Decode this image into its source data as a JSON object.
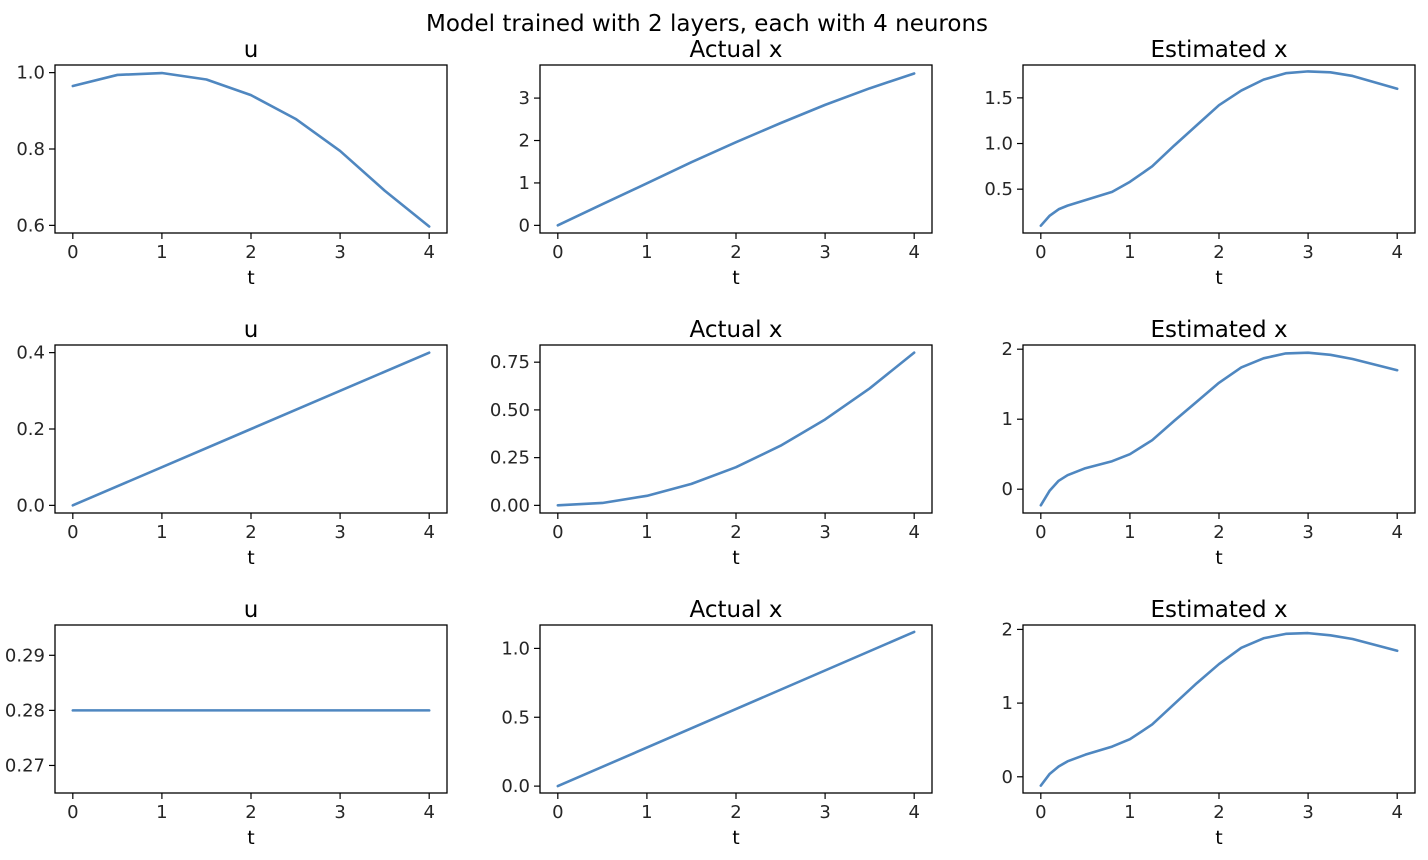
{
  "suptitle": "Model trained with 2 layers, each with 4 neurons",
  "line_color": "#4f87c0",
  "chart_data": [
    {
      "type": "line",
      "title": "u",
      "xlabel": "t",
      "ylabel": "",
      "xlim": [
        -0.2,
        4.2
      ],
      "ylim": [
        0.58,
        1.02
      ],
      "xticks": [
        0,
        1,
        2,
        3,
        4
      ],
      "xtick_labels": [
        "0",
        "1",
        "2",
        "3",
        "4"
      ],
      "yticks": [
        0.6,
        0.8,
        1.0
      ],
      "ytick_labels": [
        "0.6",
        "0.8",
        "1.0"
      ],
      "x": [
        0,
        0.5,
        1,
        1.5,
        2,
        2.5,
        3,
        3.5,
        4
      ],
      "y": [
        0.965,
        0.994,
        0.999,
        0.982,
        0.941,
        0.879,
        0.795,
        0.691,
        0.597
      ]
    },
    {
      "type": "line",
      "title": "Actual x",
      "xlabel": "t",
      "ylabel": "",
      "xlim": [
        -0.2,
        4.2
      ],
      "ylim": [
        -0.18,
        3.78
      ],
      "xticks": [
        0,
        1,
        2,
        3,
        4
      ],
      "xtick_labels": [
        "0",
        "1",
        "2",
        "3",
        "4"
      ],
      "yticks": [
        0,
        1,
        2,
        3
      ],
      "ytick_labels": [
        "0",
        "1",
        "2",
        "3"
      ],
      "x": [
        0,
        0.5,
        1,
        1.5,
        2,
        2.5,
        3,
        3.5,
        4
      ],
      "y": [
        0,
        0.5,
        0.99,
        1.49,
        1.96,
        2.41,
        2.84,
        3.23,
        3.58
      ]
    },
    {
      "type": "line",
      "title": "Estimated x",
      "xlabel": "t",
      "ylabel": "",
      "xlim": [
        -0.2,
        4.2
      ],
      "ylim": [
        0.02,
        1.86
      ],
      "xticks": [
        0,
        1,
        2,
        3,
        4
      ],
      "xtick_labels": [
        "0",
        "1",
        "2",
        "3",
        "4"
      ],
      "yticks": [
        0.5,
        1.0,
        1.5
      ],
      "ytick_labels": [
        "0.5",
        "1.0",
        "1.5"
      ],
      "x": [
        0,
        0.1,
        0.2,
        0.3,
        0.5,
        0.8,
        1.0,
        1.25,
        1.5,
        1.75,
        2.0,
        2.25,
        2.5,
        2.75,
        3.0,
        3.25,
        3.5,
        3.75,
        4.0
      ],
      "y": [
        0.1,
        0.21,
        0.28,
        0.32,
        0.38,
        0.47,
        0.58,
        0.75,
        0.98,
        1.2,
        1.42,
        1.58,
        1.7,
        1.77,
        1.79,
        1.78,
        1.74,
        1.67,
        1.6
      ]
    },
    {
      "type": "line",
      "title": "u",
      "xlabel": "t",
      "ylabel": "",
      "xlim": [
        -0.2,
        4.2
      ],
      "ylim": [
        -0.02,
        0.42
      ],
      "xticks": [
        0,
        1,
        2,
        3,
        4
      ],
      "xtick_labels": [
        "0",
        "1",
        "2",
        "3",
        "4"
      ],
      "yticks": [
        0.0,
        0.2,
        0.4
      ],
      "ytick_labels": [
        "0.0",
        "0.2",
        "0.4"
      ],
      "x": [
        0,
        1,
        2,
        3,
        4
      ],
      "y": [
        0.0,
        0.1,
        0.2,
        0.3,
        0.4
      ]
    },
    {
      "type": "line",
      "title": "Actual x",
      "xlabel": "t",
      "ylabel": "",
      "xlim": [
        -0.2,
        4.2
      ],
      "ylim": [
        -0.04,
        0.84
      ],
      "xticks": [
        0,
        1,
        2,
        3,
        4
      ],
      "xtick_labels": [
        "0",
        "1",
        "2",
        "3",
        "4"
      ],
      "yticks": [
        0.0,
        0.25,
        0.5,
        0.75
      ],
      "ytick_labels": [
        "0.00",
        "0.25",
        "0.50",
        "0.75"
      ],
      "x": [
        0,
        0.5,
        1,
        1.5,
        2,
        2.5,
        3,
        3.5,
        4
      ],
      "y": [
        0.0,
        0.0125,
        0.05,
        0.1125,
        0.2,
        0.3125,
        0.45,
        0.6125,
        0.8
      ]
    },
    {
      "type": "line",
      "title": "Estimated x",
      "xlabel": "t",
      "ylabel": "",
      "xlim": [
        -0.2,
        4.2
      ],
      "ylim": [
        -0.34,
        2.06
      ],
      "xticks": [
        0,
        1,
        2,
        3,
        4
      ],
      "xtick_labels": [
        "0",
        "1",
        "2",
        "3",
        "4"
      ],
      "yticks": [
        0,
        1,
        2
      ],
      "ytick_labels": [
        "0",
        "1",
        "2"
      ],
      "x": [
        0,
        0.1,
        0.2,
        0.3,
        0.5,
        0.8,
        1.0,
        1.25,
        1.5,
        1.75,
        2.0,
        2.25,
        2.5,
        2.75,
        3.0,
        3.25,
        3.5,
        3.75,
        4.0
      ],
      "y": [
        -0.23,
        -0.02,
        0.12,
        0.2,
        0.3,
        0.4,
        0.5,
        0.7,
        0.98,
        1.25,
        1.52,
        1.74,
        1.87,
        1.94,
        1.95,
        1.92,
        1.86,
        1.78,
        1.7
      ]
    },
    {
      "type": "line",
      "title": "u",
      "xlabel": "t",
      "ylabel": "",
      "xlim": [
        -0.2,
        4.2
      ],
      "ylim": [
        0.265,
        0.2955
      ],
      "xticks": [
        0,
        1,
        2,
        3,
        4
      ],
      "xtick_labels": [
        "0",
        "1",
        "2",
        "3",
        "4"
      ],
      "yticks": [
        0.27,
        0.28,
        0.29
      ],
      "ytick_labels": [
        "0.27",
        "0.28",
        "0.29"
      ],
      "x": [
        0,
        4
      ],
      "y": [
        0.28,
        0.28
      ]
    },
    {
      "type": "line",
      "title": "Actual x",
      "xlabel": "t",
      "ylabel": "",
      "xlim": [
        -0.2,
        4.2
      ],
      "ylim": [
        -0.05,
        1.17
      ],
      "xticks": [
        0,
        1,
        2,
        3,
        4
      ],
      "xtick_labels": [
        "0",
        "1",
        "2",
        "3",
        "4"
      ],
      "yticks": [
        0.0,
        0.5,
        1.0
      ],
      "ytick_labels": [
        "0.0",
        "0.5",
        "1.0"
      ],
      "x": [
        0,
        4
      ],
      "y": [
        0.0,
        1.12
      ]
    },
    {
      "type": "line",
      "title": "Estimated x",
      "xlabel": "t",
      "ylabel": "",
      "xlim": [
        -0.2,
        4.2
      ],
      "ylim": [
        -0.22,
        2.06
      ],
      "xticks": [
        0,
        1,
        2,
        3,
        4
      ],
      "xtick_labels": [
        "0",
        "1",
        "2",
        "3",
        "4"
      ],
      "yticks": [
        0,
        1,
        2
      ],
      "ytick_labels": [
        "0",
        "1",
        "2"
      ],
      "x": [
        0,
        0.1,
        0.2,
        0.3,
        0.5,
        0.8,
        1.0,
        1.25,
        1.5,
        1.75,
        2.0,
        2.25,
        2.5,
        2.75,
        3.0,
        3.25,
        3.5,
        3.75,
        4.0
      ],
      "y": [
        -0.12,
        0.04,
        0.14,
        0.21,
        0.3,
        0.41,
        0.51,
        0.71,
        0.99,
        1.27,
        1.53,
        1.75,
        1.88,
        1.94,
        1.95,
        1.92,
        1.87,
        1.79,
        1.71
      ]
    }
  ]
}
